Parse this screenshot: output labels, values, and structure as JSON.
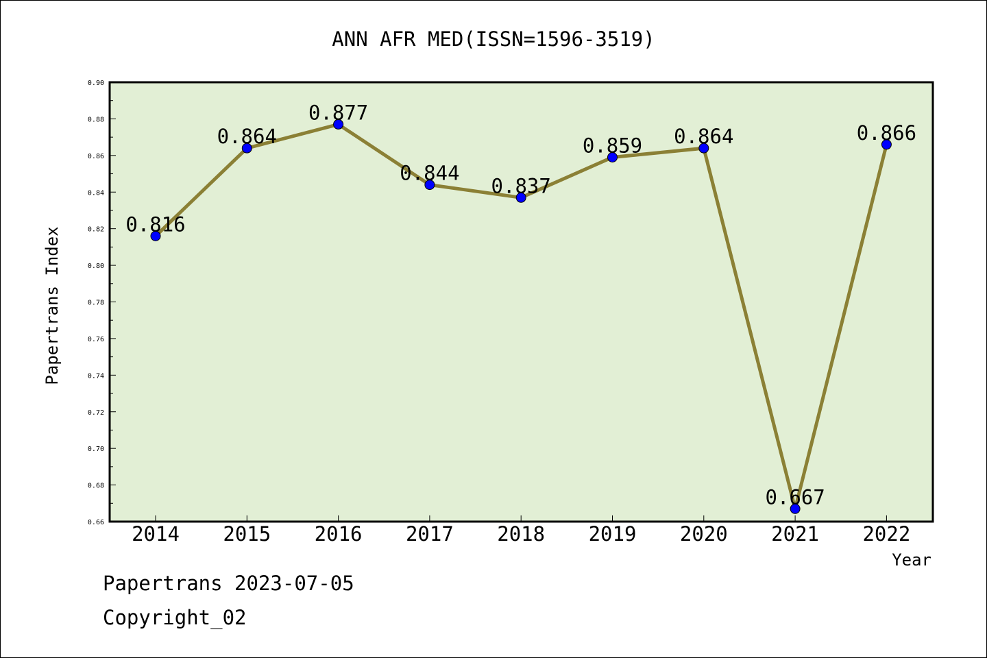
{
  "chart_data": {
    "type": "line",
    "title": "ANN AFR MED(ISSN=1596-3519)",
    "xlabel": "Year",
    "ylabel": "Papertrans Index",
    "categories": [
      "2014",
      "2015",
      "2016",
      "2017",
      "2018",
      "2019",
      "2020",
      "2021",
      "2022"
    ],
    "series": [
      {
        "values": [
          0.816,
          0.864,
          0.877,
          0.844,
          0.837,
          0.859,
          0.864,
          0.667,
          0.866
        ],
        "labels": [
          "0.816",
          "0.864",
          "0.877",
          "0.844",
          "0.837",
          "0.859",
          "0.864",
          "0.667",
          "0.866"
        ],
        "line_color": "#8b8035",
        "marker_color": "#0000ff"
      }
    ],
    "ylim": [
      0.66,
      0.9
    ],
    "yticks": [
      "0.66",
      "0.68",
      "0.70",
      "0.72",
      "0.74",
      "0.76",
      "0.78",
      "0.80",
      "0.82",
      "0.84",
      "0.86",
      "0.88",
      "0.90"
    ],
    "plot_background": "#e2efd5",
    "grid": false
  },
  "footer": {
    "line1": "Papertrans 2023-07-05",
    "line2": "Copyright_02"
  }
}
